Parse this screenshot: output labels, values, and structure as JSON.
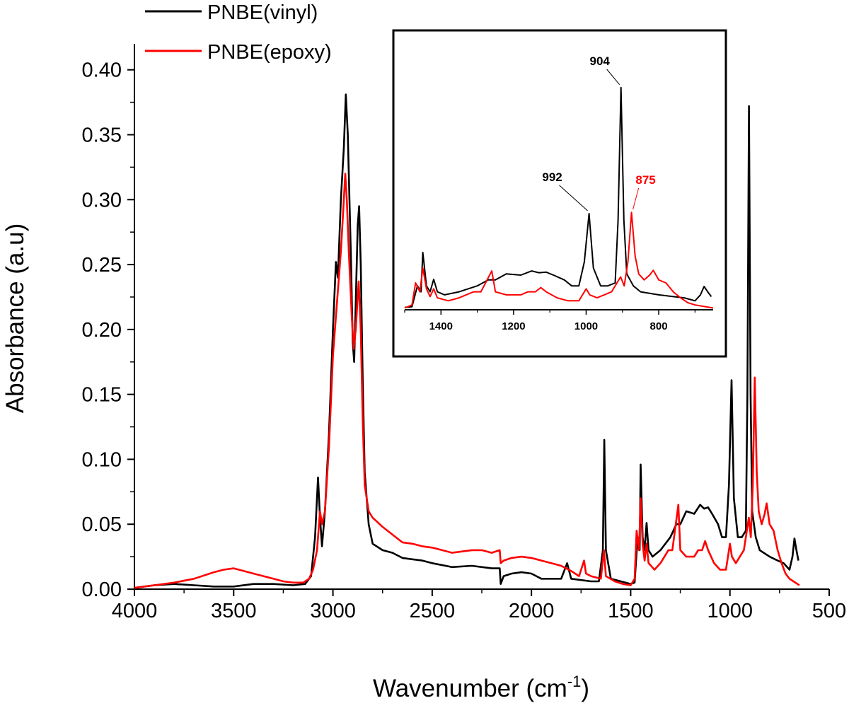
{
  "chart_data": {
    "type": "line",
    "xlabel": "Wavenumber (cm",
    "xlabel_sup": "-1",
    "xlabel_close": ")",
    "ylabel": "Absorbance (a.u)",
    "xlim": [
      4000,
      500
    ],
    "ylim": [
      0,
      0.42
    ],
    "x_ticks": [
      4000,
      3500,
      3000,
      2500,
      2000,
      1500,
      1000,
      500
    ],
    "y_ticks": [
      "0.00",
      "0.05",
      "0.10",
      "0.15",
      "0.20",
      "0.25",
      "0.30",
      "0.35",
      "0.40"
    ],
    "grid": false,
    "legend_position": "top-left",
    "series": [
      {
        "name": "PNBE(vinyl)",
        "color": "#000000",
        "points": [
          [
            4000,
            0.001
          ],
          [
            3900,
            0.003
          ],
          [
            3800,
            0.004
          ],
          [
            3700,
            0.003
          ],
          [
            3600,
            0.002
          ],
          [
            3500,
            0.002
          ],
          [
            3400,
            0.004
          ],
          [
            3300,
            0.004
          ],
          [
            3200,
            0.003
          ],
          [
            3140,
            0.004
          ],
          [
            3110,
            0.01
          ],
          [
            3090,
            0.04
          ],
          [
            3075,
            0.086
          ],
          [
            3065,
            0.055
          ],
          [
            3055,
            0.033
          ],
          [
            3040,
            0.06
          ],
          [
            3020,
            0.12
          ],
          [
            3000,
            0.2
          ],
          [
            2985,
            0.252
          ],
          [
            2975,
            0.24
          ],
          [
            2960,
            0.3
          ],
          [
            2945,
            0.34
          ],
          [
            2935,
            0.381
          ],
          [
            2925,
            0.35
          ],
          [
            2910,
            0.26
          ],
          [
            2900,
            0.19
          ],
          [
            2893,
            0.175
          ],
          [
            2885,
            0.22
          ],
          [
            2875,
            0.28
          ],
          [
            2868,
            0.295
          ],
          [
            2860,
            0.25
          ],
          [
            2850,
            0.16
          ],
          [
            2840,
            0.09
          ],
          [
            2820,
            0.05
          ],
          [
            2800,
            0.035
          ],
          [
            2750,
            0.03
          ],
          [
            2700,
            0.028
          ],
          [
            2650,
            0.024
          ],
          [
            2600,
            0.023
          ],
          [
            2550,
            0.022
          ],
          [
            2500,
            0.02
          ],
          [
            2400,
            0.017
          ],
          [
            2300,
            0.018
          ],
          [
            2200,
            0.016
          ],
          [
            2160,
            0.016
          ],
          [
            2155,
            0.004
          ],
          [
            2140,
            0.01
          ],
          [
            2100,
            0.012
          ],
          [
            2050,
            0.013
          ],
          [
            2000,
            0.012
          ],
          [
            1950,
            0.008
          ],
          [
            1900,
            0.008
          ],
          [
            1850,
            0.008
          ],
          [
            1820,
            0.02
          ],
          [
            1800,
            0.008
          ],
          [
            1700,
            0.006
          ],
          [
            1660,
            0.006
          ],
          [
            1640,
            0.03
          ],
          [
            1633,
            0.115
          ],
          [
            1625,
            0.03
          ],
          [
            1600,
            0.008
          ],
          [
            1550,
            0.006
          ],
          [
            1500,
            0.004
          ],
          [
            1480,
            0.005
          ],
          [
            1465,
            0.04
          ],
          [
            1455,
            0.03
          ],
          [
            1450,
            0.096
          ],
          [
            1440,
            0.04
          ],
          [
            1430,
            0.03
          ],
          [
            1420,
            0.051
          ],
          [
            1410,
            0.03
          ],
          [
            1390,
            0.025
          ],
          [
            1350,
            0.03
          ],
          [
            1300,
            0.04
          ],
          [
            1270,
            0.05
          ],
          [
            1250,
            0.05
          ],
          [
            1220,
            0.06
          ],
          [
            1180,
            0.058
          ],
          [
            1150,
            0.065
          ],
          [
            1130,
            0.062
          ],
          [
            1110,
            0.063
          ],
          [
            1090,
            0.058
          ],
          [
            1060,
            0.05
          ],
          [
            1040,
            0.04
          ],
          [
            1020,
            0.04
          ],
          [
            1005,
            0.08
          ],
          [
            992,
            0.161
          ],
          [
            980,
            0.07
          ],
          [
            960,
            0.04
          ],
          [
            940,
            0.04
          ],
          [
            920,
            0.045
          ],
          [
            912,
            0.15
          ],
          [
            904,
            0.372
          ],
          [
            896,
            0.15
          ],
          [
            888,
            0.06
          ],
          [
            870,
            0.04
          ],
          [
            850,
            0.03
          ],
          [
            800,
            0.025
          ],
          [
            760,
            0.022
          ],
          [
            730,
            0.02
          ],
          [
            700,
            0.015
          ],
          [
            685,
            0.025
          ],
          [
            675,
            0.039
          ],
          [
            665,
            0.03
          ],
          [
            655,
            0.022
          ]
        ]
      },
      {
        "name": "PNBE(epoxy)",
        "color": "#ff0000",
        "points": [
          [
            4000,
            0.001
          ],
          [
            3900,
            0.003
          ],
          [
            3800,
            0.005
          ],
          [
            3700,
            0.008
          ],
          [
            3600,
            0.013
          ],
          [
            3550,
            0.015
          ],
          [
            3500,
            0.016
          ],
          [
            3450,
            0.014
          ],
          [
            3400,
            0.012
          ],
          [
            3350,
            0.01
          ],
          [
            3300,
            0.008
          ],
          [
            3250,
            0.006
          ],
          [
            3200,
            0.005
          ],
          [
            3150,
            0.005
          ],
          [
            3120,
            0.008
          ],
          [
            3100,
            0.015
          ],
          [
            3080,
            0.03
          ],
          [
            3065,
            0.06
          ],
          [
            3055,
            0.05
          ],
          [
            3040,
            0.06
          ],
          [
            3020,
            0.11
          ],
          [
            3000,
            0.18
          ],
          [
            2980,
            0.22
          ],
          [
            2960,
            0.26
          ],
          [
            2945,
            0.3
          ],
          [
            2938,
            0.32
          ],
          [
            2930,
            0.3
          ],
          [
            2920,
            0.26
          ],
          [
            2905,
            0.21
          ],
          [
            2895,
            0.185
          ],
          [
            2885,
            0.2
          ],
          [
            2875,
            0.225
          ],
          [
            2870,
            0.237
          ],
          [
            2860,
            0.2
          ],
          [
            2850,
            0.13
          ],
          [
            2840,
            0.08
          ],
          [
            2820,
            0.06
          ],
          [
            2800,
            0.055
          ],
          [
            2750,
            0.048
          ],
          [
            2700,
            0.042
          ],
          [
            2650,
            0.036
          ],
          [
            2600,
            0.035
          ],
          [
            2550,
            0.033
          ],
          [
            2500,
            0.032
          ],
          [
            2450,
            0.03
          ],
          [
            2400,
            0.028
          ],
          [
            2300,
            0.03
          ],
          [
            2250,
            0.03
          ],
          [
            2200,
            0.028
          ],
          [
            2160,
            0.03
          ],
          [
            2155,
            0.02
          ],
          [
            2140,
            0.022
          ],
          [
            2100,
            0.024
          ],
          [
            2050,
            0.025
          ],
          [
            2000,
            0.024
          ],
          [
            1950,
            0.022
          ],
          [
            1900,
            0.02
          ],
          [
            1850,
            0.018
          ],
          [
            1800,
            0.014
          ],
          [
            1760,
            0.01
          ],
          [
            1735,
            0.022
          ],
          [
            1725,
            0.012
          ],
          [
            1700,
            0.01
          ],
          [
            1650,
            0.008
          ],
          [
            1635,
            0.03
          ],
          [
            1625,
            0.01
          ],
          [
            1580,
            0.006
          ],
          [
            1540,
            0.004
          ],
          [
            1500,
            0.003
          ],
          [
            1480,
            0.008
          ],
          [
            1470,
            0.045
          ],
          [
            1458,
            0.03
          ],
          [
            1450,
            0.07
          ],
          [
            1440,
            0.035
          ],
          [
            1430,
            0.022
          ],
          [
            1420,
            0.035
          ],
          [
            1410,
            0.02
          ],
          [
            1380,
            0.015
          ],
          [
            1350,
            0.02
          ],
          [
            1310,
            0.03
          ],
          [
            1290,
            0.03
          ],
          [
            1260,
            0.065
          ],
          [
            1250,
            0.03
          ],
          [
            1220,
            0.025
          ],
          [
            1180,
            0.025
          ],
          [
            1160,
            0.03
          ],
          [
            1140,
            0.03
          ],
          [
            1125,
            0.037
          ],
          [
            1110,
            0.03
          ],
          [
            1080,
            0.02
          ],
          [
            1050,
            0.015
          ],
          [
            1020,
            0.015
          ],
          [
            1000,
            0.035
          ],
          [
            990,
            0.025
          ],
          [
            970,
            0.02
          ],
          [
            950,
            0.025
          ],
          [
            930,
            0.03
          ],
          [
            905,
            0.055
          ],
          [
            895,
            0.04
          ],
          [
            885,
            0.08
          ],
          [
            875,
            0.163
          ],
          [
            865,
            0.09
          ],
          [
            855,
            0.06
          ],
          [
            840,
            0.05
          ],
          [
            825,
            0.058
          ],
          [
            815,
            0.066
          ],
          [
            800,
            0.05
          ],
          [
            780,
            0.045
          ],
          [
            760,
            0.03
          ],
          [
            740,
            0.02
          ],
          [
            720,
            0.012
          ],
          [
            700,
            0.008
          ],
          [
            680,
            0.006
          ],
          [
            660,
            0.004
          ],
          [
            650,
            0.003
          ]
        ]
      }
    ],
    "inset": {
      "xlim": [
        1500,
        650
      ],
      "x_ticks": [
        1400,
        1200,
        1000,
        800
      ],
      "annotations": [
        {
          "label": "904",
          "x": 904,
          "color": "#000000",
          "series": 0
        },
        {
          "label": "992",
          "x": 992,
          "color": "#000000",
          "series": 0
        },
        {
          "label": "875",
          "x": 875,
          "color": "#ff0000",
          "series": 1
        }
      ]
    }
  }
}
